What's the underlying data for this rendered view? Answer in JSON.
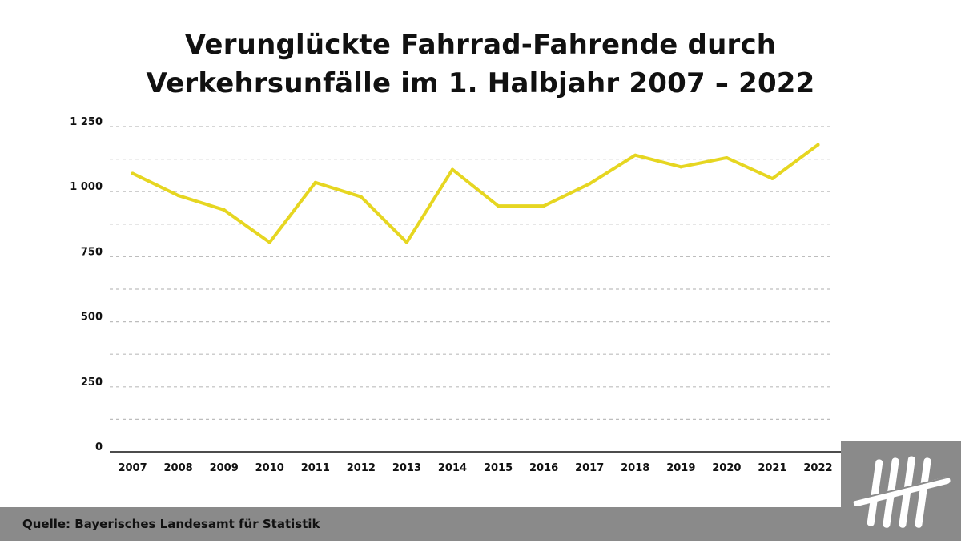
{
  "title_line1": "Verunglückte Fahrrad-Fahrende durch",
  "title_line2": "Verkehrsunfälle im 1. Halbjahr 2007 – 2022",
  "source": "Quelle: Bayerisches Landesamt für Statistik",
  "logo_icon": "tally-marks-icon",
  "colors": {
    "line": "#e6d621",
    "grid": "#bdbdbd",
    "axis": "#111111",
    "footer": "#8a8a8a",
    "logo_marks": "#ffffff"
  },
  "chart_data": {
    "type": "line",
    "title": "Verunglückte Fahrrad-Fahrende durch Verkehrsunfälle im 1. Halbjahr 2007 – 2022",
    "xlabel": "",
    "ylabel": "",
    "ylim": [
      0,
      1250
    ],
    "yticks": [
      0,
      250,
      500,
      750,
      1000,
      1250
    ],
    "ytick_labels": [
      "0",
      "250",
      "500",
      "750",
      "1 000",
      "1 250"
    ],
    "grid": true,
    "legend": "none",
    "categories": [
      "2007",
      "2008",
      "2009",
      "2010",
      "2011",
      "2012",
      "2013",
      "2014",
      "2015",
      "2016",
      "2017",
      "2018",
      "2019",
      "2020",
      "2021",
      "2022"
    ],
    "series": [
      {
        "values": [
          1070,
          985,
          930,
          805,
          1035,
          980,
          805,
          1085,
          945,
          945,
          1030,
          1140,
          1095,
          1130,
          1050,
          1180
        ]
      }
    ]
  }
}
